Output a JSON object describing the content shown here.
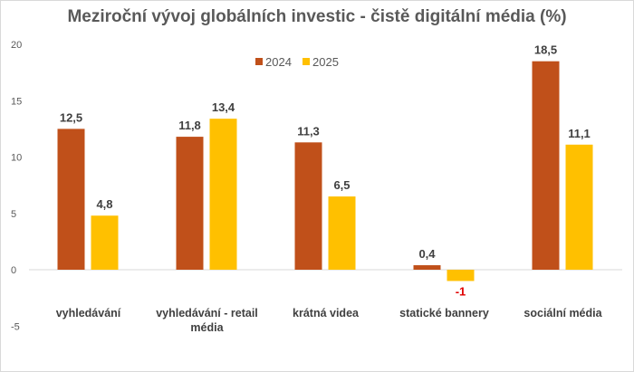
{
  "chart_data": {
    "type": "bar",
    "title": "Meziroční vývoj globálních investic - čistě digitální média (%)",
    "categories": [
      [
        "vyhledávání"
      ],
      [
        "vyhledávání - retail",
        "média"
      ],
      [
        "krátná videa"
      ],
      [
        "statické bannery"
      ],
      [
        "sociální média"
      ]
    ],
    "series": [
      {
        "name": "2024",
        "color": "#C0501A",
        "values": [
          12.5,
          11.8,
          11.3,
          0.4,
          18.5
        ],
        "labels": [
          "12,5",
          "11,8",
          "11,3",
          "0,4",
          "18,5"
        ]
      },
      {
        "name": "2025",
        "color": "#FFC000",
        "values": [
          4.8,
          13.4,
          6.5,
          -1,
          11.1
        ],
        "labels": [
          "4,8",
          "13,4",
          "6,5",
          "-1",
          "11,1"
        ]
      }
    ],
    "negative_label_color": "#E00000",
    "yticks": [
      "20",
      "15",
      "10",
      "5",
      "0",
      "-5"
    ],
    "ylim": [
      -5,
      20
    ],
    "grid": false,
    "legend": "top-center"
  }
}
